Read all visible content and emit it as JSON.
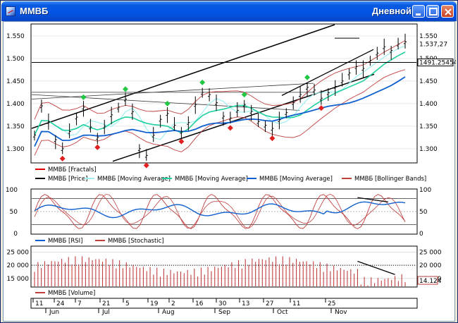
{
  "window": {
    "title": "ММВБ",
    "mode": "Дневной"
  },
  "titlebar_buttons": [
    "minimize",
    "maximize",
    "close"
  ],
  "price_panel": {
    "y_ticks": [
      "1.550",
      "1.500",
      "1.450",
      "1.400",
      "1.350",
      "1.300"
    ],
    "y_tick_values": [
      1550,
      1500,
      1450,
      1400,
      1350,
      1300
    ],
    "last_price": "1.537,27",
    "hline_price": "1491.25454",
    "hline_value": 1491.25,
    "legend": [
      {
        "label": "ММВБ [Fractals]",
        "color": "#e00000"
      },
      {
        "label": "ММВБ [Price]",
        "color": "#000000"
      },
      {
        "label": "ММВБ [Moving Average]",
        "color": "#a0f0f0"
      },
      {
        "label": "ММВБ [Moving Average]",
        "color": "#20d0a0"
      },
      {
        "label": "ММВБ [Moving Average]",
        "color": "#1060d0"
      },
      {
        "label": "ММВБ [Bollinger Bands]",
        "color": "#c04040"
      }
    ]
  },
  "oscillator_panel": {
    "y_ticks": [
      "100",
      "50",
      "0"
    ],
    "legend": [
      {
        "label": "ММВБ [RSI]",
        "color": "#1060d0"
      },
      {
        "label": "ММВБ [Stochastic]",
        "color": "#c04040"
      }
    ]
  },
  "volume_panel": {
    "y_ticks": [
      "25 000",
      "20 000",
      "15 000"
    ],
    "last_value": "14.124",
    "legend": [
      {
        "label": "ММВБ [Volume]",
        "color": "#c04040"
      }
    ]
  },
  "time_axis": {
    "days": [
      "11",
      "24",
      "7",
      "21",
      "5",
      "19",
      "2",
      "16",
      "30",
      "13",
      "27",
      "11",
      "25"
    ],
    "months": [
      "Jun",
      "Jul",
      "Aug",
      "Sep",
      "Oct",
      "Nov"
    ]
  },
  "chart_data": {
    "type": "line",
    "ylim": [
      1270,
      1575
    ],
    "series": [
      {
        "values": [
          1330,
          1395,
          1360,
          1320,
          1300,
          1338,
          1370,
          1392,
          1348,
          1325,
          1350,
          1375,
          1392,
          1410,
          1382,
          1300,
          1285,
          1330,
          1365,
          1378,
          1352,
          1338,
          1358,
          1398,
          1425,
          1420,
          1402,
          1372,
          1368,
          1385,
          1398,
          1383,
          1360,
          1352,
          1345,
          1364,
          1380,
          1402,
          1420,
          1436,
          1430,
          1412,
          1424,
          1438,
          1450,
          1468,
          1482,
          1478,
          1496,
          1512,
          1526,
          1518,
          1532,
          1537
        ]
      }
    ]
  }
}
